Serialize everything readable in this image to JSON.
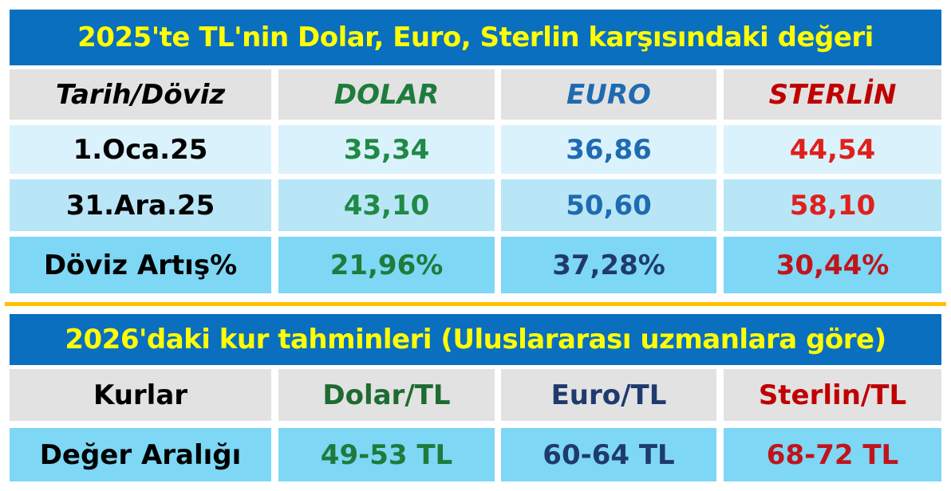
{
  "sections": [
    {
      "title": "2025'te TL'nin Dolar, Euro, Sterlin karşısındaki değeri",
      "header": [
        "Tarih/Döviz",
        "DOLAR",
        "EURO",
        "STERLİN"
      ],
      "rows": [
        [
          "1.Oca.25",
          "35,34",
          "36,86",
          "44,54"
        ],
        [
          "31.Ara.25",
          "43,10",
          "50,60",
          "58,10"
        ],
        [
          "Döviz Artış%",
          "21,96%",
          "37,28%",
          "30,44%"
        ]
      ]
    },
    {
      "title": "2026'daki kur tahminleri (Uluslararası uzmanlara göre)",
      "header": [
        "Kurlar",
        "Dolar/TL",
        "Euro/TL",
        "Sterlin/TL"
      ],
      "rows": [
        [
          "Değer Aralığı",
          "49-53 TL",
          "60-64 TL",
          "68-72 TL"
        ]
      ]
    }
  ]
}
